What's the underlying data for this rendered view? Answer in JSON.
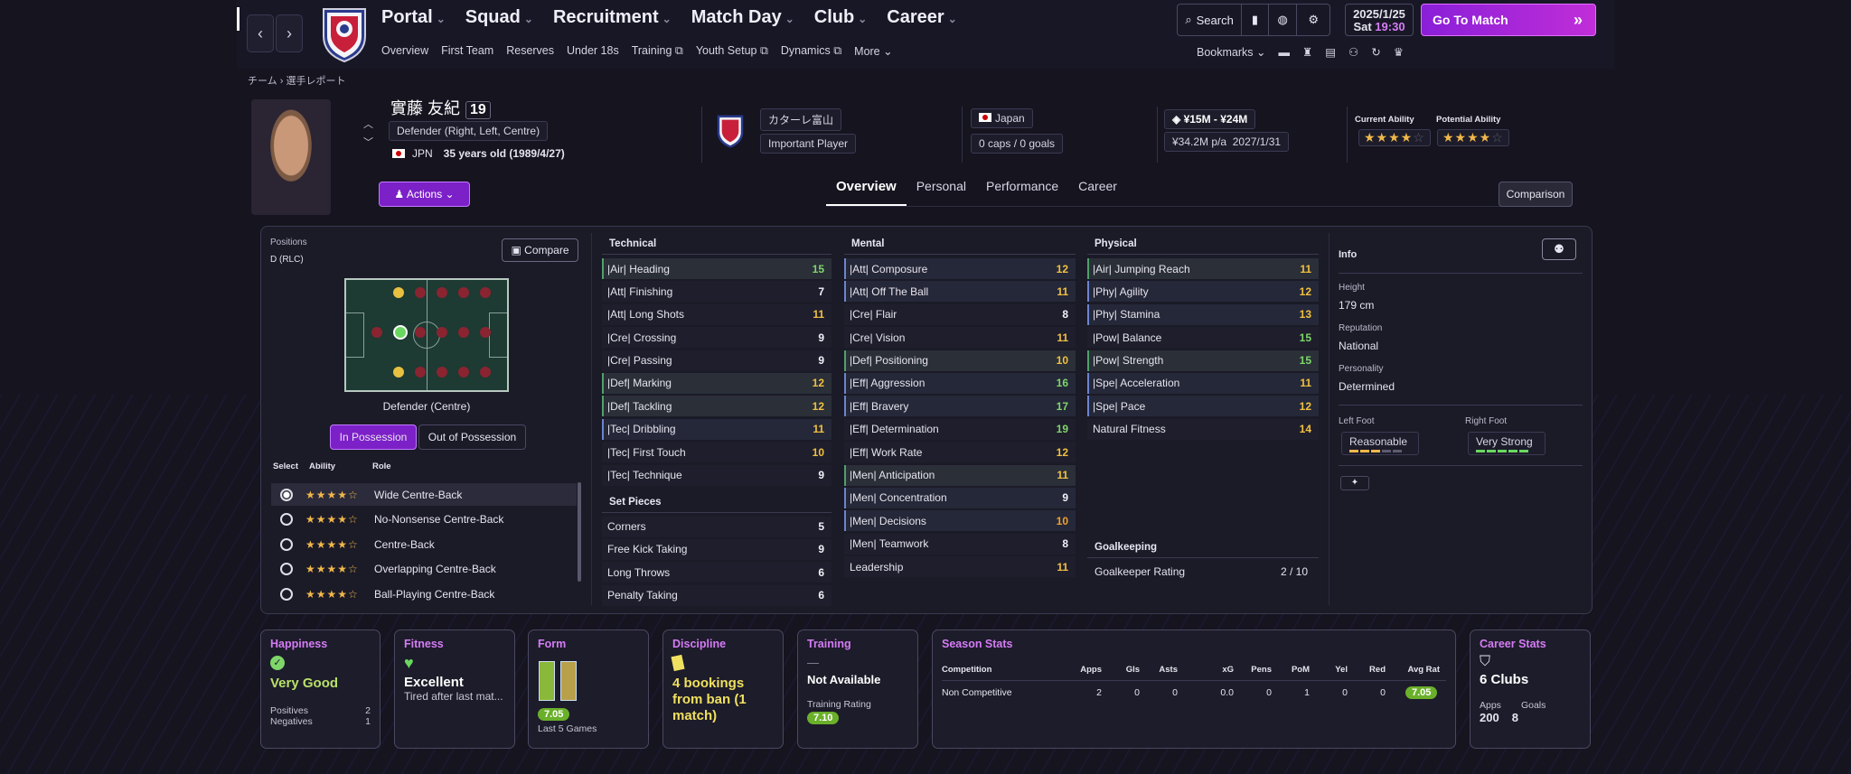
{
  "nav": {
    "main": [
      {
        "label": "Portal",
        "active": false
      },
      {
        "label": "Squad",
        "active": true
      },
      {
        "label": "Recruitment",
        "active": false
      },
      {
        "label": "Match Day",
        "active": false
      },
      {
        "label": "Club",
        "active": false
      },
      {
        "label": "Career",
        "active": false
      }
    ],
    "sub": [
      "Overview",
      "First Team",
      "Reserves",
      "Under 18s",
      "Training ⧉",
      "Youth Setup ⧉",
      "Dynamics ⧉",
      "More ⌄"
    ],
    "search_label": "Search",
    "date": "2025/1/25",
    "day": "Sat",
    "time": "19:30",
    "go_to_match": "Go To Match",
    "bookmarks": "Bookmarks"
  },
  "breadcrumb": "チーム › 選手レポート",
  "player": {
    "name": "實藤 友紀",
    "number": "19",
    "position": "Defender (Right, Left, Centre)",
    "nationality": "JPN",
    "age": "35 years old (1989/4/27)",
    "club": "カターレ富山",
    "squad_status": "Important Player",
    "country": "Japan",
    "caps": "0 caps / 0 goals",
    "value": "¥15M - ¥24M",
    "wage": "¥34.2M p/a",
    "contract": "2027/1/31",
    "current_ability_label": "Current Ability",
    "potential_ability_label": "Potential Ability",
    "actions": "Actions"
  },
  "tabs": [
    "Overview",
    "Personal",
    "Performance",
    "Career"
  ],
  "comparison": "Comparison",
  "positions": {
    "title": "Positions",
    "code": "D (RLC)",
    "compare": "Compare",
    "selected": "Defender (Centre)",
    "in_possession": "In Possession",
    "out_possession": "Out of Possession",
    "head_select": "Select",
    "head_ability": "Ability",
    "head_role": "Role",
    "roles": [
      {
        "name": "Wide Centre-Back",
        "stars": "★★★★☆",
        "selected": true
      },
      {
        "name": "No-Nonsense Centre-Back",
        "stars": "★★★★☆",
        "selected": false
      },
      {
        "name": "Centre-Back",
        "stars": "★★★★☆",
        "selected": false
      },
      {
        "name": "Overlapping Centre-Back",
        "stars": "★★★★☆",
        "selected": false
      },
      {
        "name": "Ball-Playing Centre-Back",
        "stars": "★★★★☆",
        "selected": false
      }
    ]
  },
  "technical": {
    "title": "Technical",
    "items": [
      [
        "|Air| Heading",
        "15",
        "g",
        "hl"
      ],
      [
        "|Att| Finishing",
        "7",
        "w",
        ""
      ],
      [
        "|Att| Long Shots",
        "11",
        "y",
        ""
      ],
      [
        "|Cre| Crossing",
        "9",
        "w",
        ""
      ],
      [
        "|Cre| Passing",
        "9",
        "w",
        ""
      ],
      [
        "|Def| Marking",
        "12",
        "y",
        "hl"
      ],
      [
        "|Def| Tackling",
        "12",
        "y",
        "hl"
      ],
      [
        "|Tec| Dribbling",
        "11",
        "y",
        "bl"
      ],
      [
        "|Tec| First Touch",
        "10",
        "y",
        ""
      ],
      [
        "|Tec| Technique",
        "9",
        "w",
        ""
      ]
    ]
  },
  "set_pieces": {
    "title": "Set Pieces",
    "items": [
      [
        "Corners",
        "5",
        "w",
        ""
      ],
      [
        "Free Kick Taking",
        "9",
        "w",
        ""
      ],
      [
        "Long Throws",
        "6",
        "w",
        ""
      ],
      [
        "Penalty Taking",
        "6",
        "w",
        ""
      ]
    ]
  },
  "mental": {
    "title": "Mental",
    "items": [
      [
        "|Att| Composure",
        "12",
        "y",
        "bl"
      ],
      [
        "|Att| Off The Ball",
        "11",
        "y",
        "bl"
      ],
      [
        "|Cre| Flair",
        "8",
        "w",
        ""
      ],
      [
        "|Cre| Vision",
        "11",
        "y",
        ""
      ],
      [
        "|Def| Positioning",
        "10",
        "y",
        "hl"
      ],
      [
        "|Eff| Aggression",
        "16",
        "g",
        "bl"
      ],
      [
        "|Eff| Bravery",
        "17",
        "g",
        "bl"
      ],
      [
        "|Eff| Determination",
        "19",
        "g",
        ""
      ],
      [
        "|Eff| Work Rate",
        "12",
        "y",
        ""
      ],
      [
        "|Men| Anticipation",
        "11",
        "y",
        "hl"
      ],
      [
        "|Men| Concentration",
        "9",
        "w",
        "bl"
      ],
      [
        "|Men| Decisions",
        "10",
        "o",
        "bl"
      ],
      [
        "|Men| Teamwork",
        "8",
        "w",
        ""
      ],
      [
        "Leadership",
        "11",
        "y",
        ""
      ]
    ]
  },
  "physical": {
    "title": "Physical",
    "items": [
      [
        "|Air| Jumping Reach",
        "11",
        "y",
        "hl"
      ],
      [
        "|Phy| Agility",
        "12",
        "y",
        "bl"
      ],
      [
        "|Phy| Stamina",
        "13",
        "y",
        "bl"
      ],
      [
        "|Pow| Balance",
        "15",
        "g",
        ""
      ],
      [
        "|Pow| Strength",
        "15",
        "g",
        "hl"
      ],
      [
        "|Spe| Acceleration",
        "11",
        "y",
        "bl"
      ],
      [
        "|Spe| Pace",
        "12",
        "y",
        "bl"
      ],
      [
        "Natural Fitness",
        "14",
        "y",
        ""
      ]
    ]
  },
  "goalkeeping": {
    "title": "Goalkeeping",
    "label": "Goalkeeper Rating",
    "value": "2 / 10"
  },
  "info": {
    "title": "Info",
    "height_label": "Height",
    "height": "179 cm",
    "rep_label": "Reputation",
    "rep": "National",
    "pers_label": "Personality",
    "pers": "Determined",
    "left_label": "Left Foot",
    "left": "Reasonable",
    "right_label": "Right Foot",
    "right": "Very Strong"
  },
  "cards": {
    "happiness": {
      "title": "Happiness",
      "value": "Very Good",
      "pos_label": "Positives",
      "pos": "2",
      "neg_label": "Negatives",
      "neg": "1"
    },
    "fitness": {
      "title": "Fitness",
      "value": "Excellent",
      "sub": "Tired after last mat..."
    },
    "form": {
      "title": "Form",
      "rating": "7.05",
      "sub": "Last 5 Games"
    },
    "discipline": {
      "title": "Discipline",
      "value": "4 bookings from ban (1 match)"
    },
    "training": {
      "title": "Training",
      "value": "Not Available",
      "rating_label": "Training Rating",
      "rating": "7.10"
    },
    "season": {
      "title": "Season Stats",
      "headers": [
        "Competition",
        "Apps",
        "Gls",
        "Asts",
        "xG",
        "Pens",
        "PoM",
        "Yel",
        "Red",
        "Avg Rat"
      ],
      "row": [
        "Non Competitive",
        "2",
        "0",
        "0",
        "0.0",
        "0",
        "1",
        "0",
        "0",
        "7.05"
      ]
    },
    "career": {
      "title": "Career Stats",
      "value": "6 Clubs",
      "apps_label": "Apps",
      "apps": "200",
      "goals_label": "Goals",
      "goals": "8"
    }
  },
  "colors": {
    "accent": "#c46cf0",
    "button": "#7c20c8",
    "green": "#7fd66a",
    "yellow": "#f0c040"
  }
}
